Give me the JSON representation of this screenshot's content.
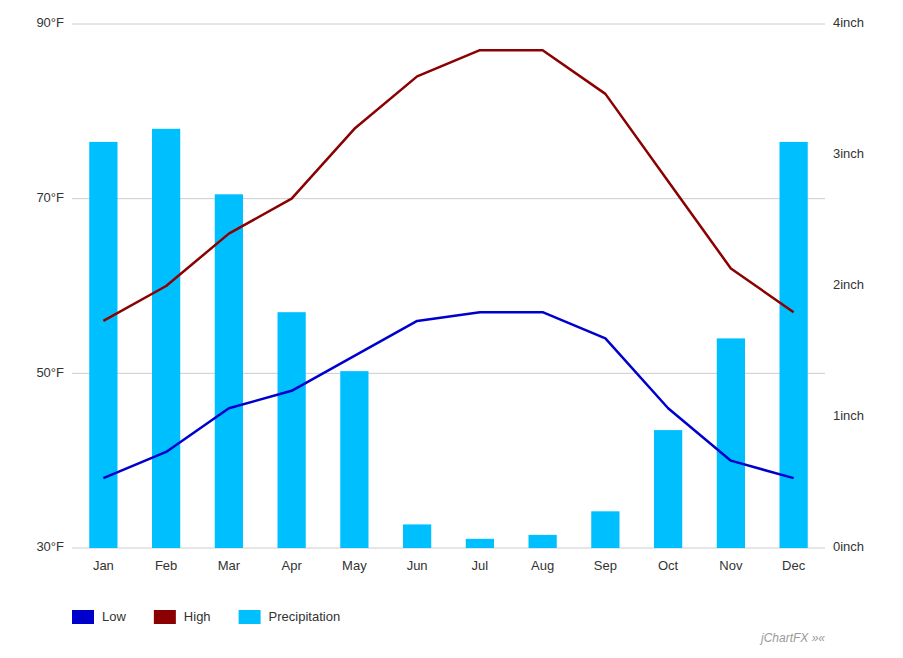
{
  "chart_data": {
    "type": "line",
    "categories": [
      "Jan",
      "Feb",
      "Mar",
      "Apr",
      "May",
      "Jun",
      "Jul",
      "Aug",
      "Sep",
      "Oct",
      "Nov",
      "Dec"
    ],
    "series": [
      {
        "name": "Low",
        "type": "line",
        "color": "#0000CC",
        "values": [
          38,
          41,
          46,
          48,
          52,
          56,
          57,
          57,
          54,
          46,
          40,
          38
        ]
      },
      {
        "name": "High",
        "type": "line",
        "color": "#8B0000",
        "values": [
          56,
          60,
          66,
          70,
          78,
          84,
          87,
          87,
          82,
          72,
          62,
          57
        ]
      },
      {
        "name": "Precipitation",
        "type": "bar",
        "axis": "y2",
        "color": "#00BFFF",
        "values": [
          3.1,
          3.2,
          2.7,
          1.8,
          1.35,
          0.18,
          0.07,
          0.1,
          0.28,
          0.9,
          1.6,
          3.1
        ]
      }
    ],
    "ylim": [
      30,
      90
    ],
    "yticks": [
      {
        "value": 30,
        "label": "30°F"
      },
      {
        "value": 50,
        "label": "50°F"
      },
      {
        "value": 70,
        "label": "70°F"
      },
      {
        "value": 90,
        "label": "90°F"
      }
    ],
    "y2lim": [
      0,
      4
    ],
    "y2ticks": [
      {
        "value": 0,
        "label": "0inch"
      },
      {
        "value": 1,
        "label": "1inch"
      },
      {
        "value": 2,
        "label": "2inch"
      },
      {
        "value": 3,
        "label": "3inch"
      },
      {
        "value": 4,
        "label": "4inch"
      }
    ],
    "grid": true,
    "legend": "lower left",
    "annotations": [
      "jChartFX »«"
    ]
  }
}
